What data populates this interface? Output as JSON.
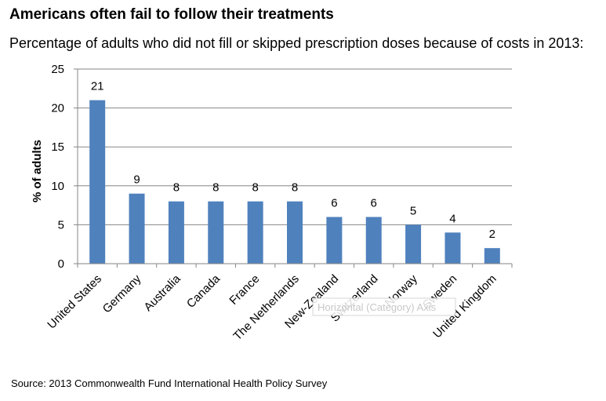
{
  "header": {
    "title": "Americans often fail to follow their treatments",
    "subtitle": "Percentage of adults who did not fill or skipped prescription doses because of costs in 2013:"
  },
  "footer": {
    "source": "Source: 2013  Commonwealth Fund International Health Policy Survey"
  },
  "tooltip": {
    "text": "Horizontal (Category) Axis"
  },
  "chart_data": {
    "type": "bar",
    "categories": [
      "United States",
      "Germany",
      "Australia",
      "Canada",
      "France",
      "The Netherlands",
      "New-Zealand",
      "Switzerland",
      "Norway",
      "Sweden",
      "United Kingdom"
    ],
    "values": [
      21,
      9,
      8,
      8,
      8,
      8,
      6,
      6,
      5,
      4,
      2
    ],
    "data_labels": [
      "21",
      "9",
      "8",
      "8",
      "8",
      "8",
      "6",
      "6",
      "5",
      "4",
      "2"
    ],
    "ylabel": "% of adults",
    "xlabel": "",
    "ylim": [
      0,
      25
    ],
    "yticks": [
      0,
      5,
      10,
      15,
      20,
      25
    ],
    "grid": true,
    "legend": "none",
    "bar_color": "#4f81bd",
    "gridline_color": "#868686"
  }
}
